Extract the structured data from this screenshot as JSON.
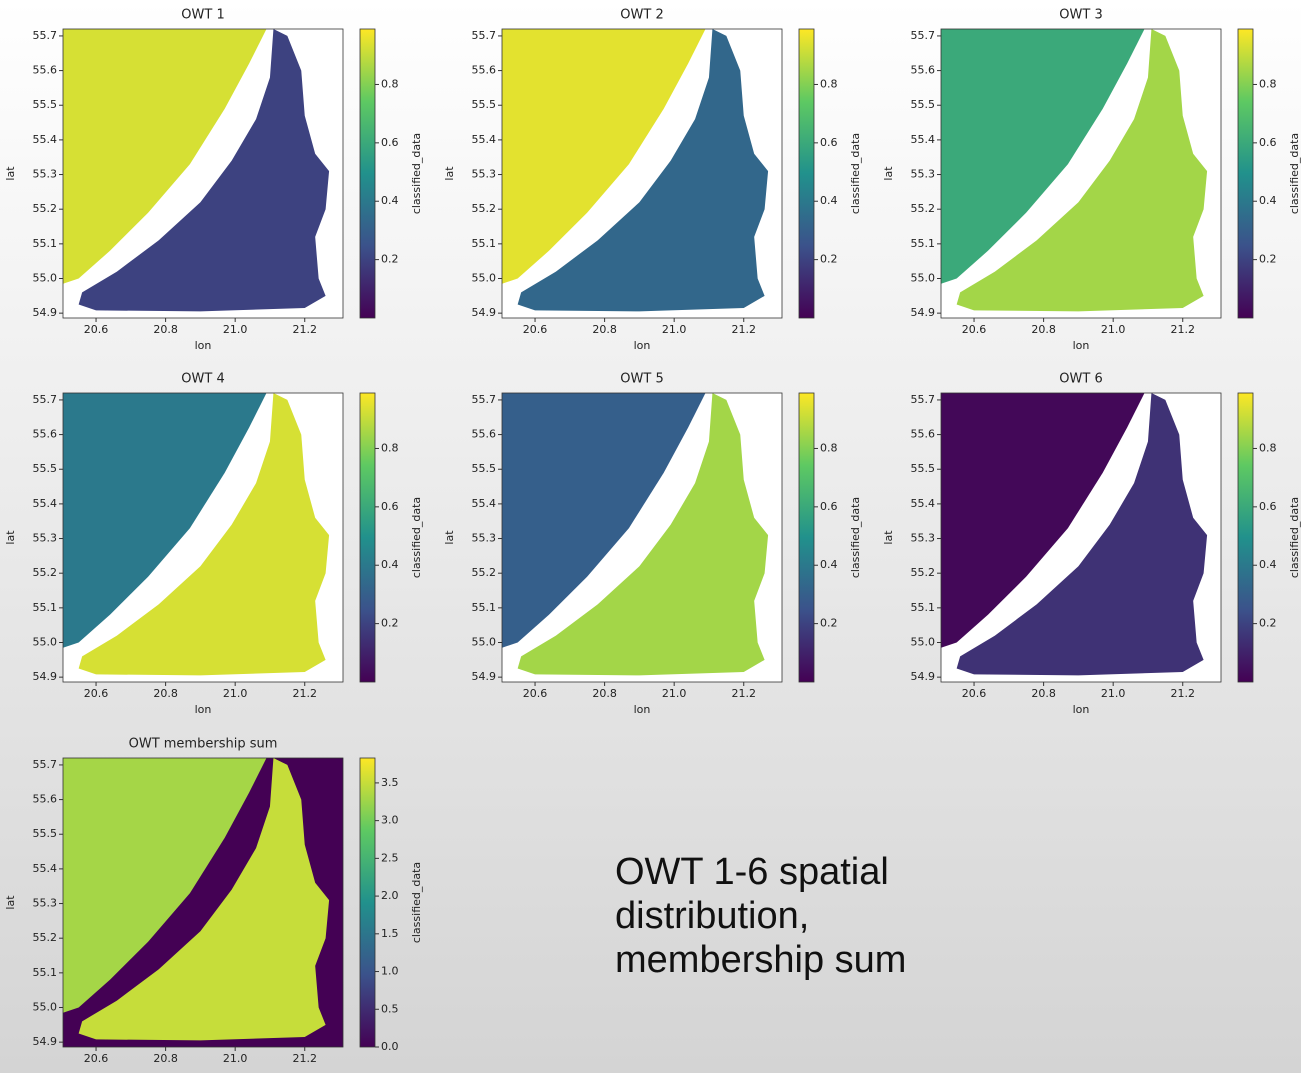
{
  "chart_data": [
    {
      "type": "heatmap",
      "title": "OWT 1",
      "xlabel": "lon",
      "ylabel": "lat",
      "xlim": [
        20.505,
        21.31
      ],
      "ylim": [
        54.886,
        55.72
      ],
      "xticks": [
        20.6,
        20.8,
        {
          "value": 21,
          "label": "21.0"
        },
        21.2
      ],
      "yticks": [
        54.9,
        {
          "value": 55,
          "label": "55.0"
        },
        55.1,
        55.2,
        55.3,
        55.4,
        55.5,
        55.6,
        55.7
      ],
      "values": [
        0.93,
        0.2
      ],
      "colorbar": {
        "label": "classified_data",
        "lim": [
          0,
          0.99
        ],
        "ticks": [
          0.2,
          0.4,
          0.6,
          0.8
        ]
      }
    },
    {
      "type": "heatmap",
      "title": "OWT 2",
      "xlabel": "lon",
      "ylabel": "lat",
      "xlim": [
        20.505,
        21.31
      ],
      "ylim": [
        54.886,
        55.72
      ],
      "xticks": [
        20.6,
        20.8,
        {
          "value": 21,
          "label": "21.0"
        },
        21.2
      ],
      "yticks": [
        54.9,
        {
          "value": 55,
          "label": "55.0"
        },
        55.1,
        55.2,
        55.3,
        55.4,
        55.5,
        55.6,
        55.7
      ],
      "values": [
        0.95,
        0.33
      ],
      "colorbar": {
        "label": "classified_data",
        "lim": [
          0,
          0.99
        ],
        "ticks": [
          0.2,
          0.4,
          0.6,
          0.8
        ]
      }
    },
    {
      "type": "heatmap",
      "title": "OWT 3",
      "xlabel": "lon",
      "ylabel": "lat",
      "xlim": [
        20.505,
        21.31
      ],
      "ylim": [
        54.886,
        55.72
      ],
      "xticks": [
        20.6,
        20.8,
        {
          "value": 21,
          "label": "21.0"
        },
        21.2
      ],
      "yticks": [
        54.9,
        {
          "value": 55,
          "label": "55.0"
        },
        55.1,
        55.2,
        55.3,
        55.4,
        55.5,
        55.6,
        55.7
      ],
      "values": [
        0.6,
        0.85
      ],
      "colorbar": {
        "label": "classified_data",
        "lim": [
          0,
          0.99
        ],
        "ticks": [
          0.2,
          0.4,
          0.6,
          0.8
        ]
      }
    },
    {
      "type": "heatmap",
      "title": "OWT 4",
      "xlabel": "lon",
      "ylabel": "lat",
      "xlim": [
        20.505,
        21.31
      ],
      "ylim": [
        54.886,
        55.72
      ],
      "xticks": [
        20.6,
        20.8,
        {
          "value": 21,
          "label": "21.0"
        },
        21.2
      ],
      "yticks": [
        54.9,
        {
          "value": 55,
          "label": "55.0"
        },
        55.1,
        55.2,
        55.3,
        55.4,
        55.5,
        55.6,
        55.7
      ],
      "values": [
        0.4,
        0.93
      ],
      "colorbar": {
        "label": "classified_data",
        "lim": [
          0,
          0.99
        ],
        "ticks": [
          0.2,
          0.4,
          0.6,
          0.8
        ]
      }
    },
    {
      "type": "heatmap",
      "title": "OWT 5",
      "xlabel": "lon",
      "ylabel": "lat",
      "xlim": [
        20.505,
        21.31
      ],
      "ylim": [
        54.886,
        55.72
      ],
      "xticks": [
        20.6,
        20.8,
        {
          "value": 21,
          "label": "21.0"
        },
        21.2
      ],
      "yticks": [
        54.9,
        {
          "value": 55,
          "label": "55.0"
        },
        55.1,
        55.2,
        55.3,
        55.4,
        55.5,
        55.6,
        55.7
      ],
      "values": [
        0.3,
        0.85
      ],
      "colorbar": {
        "label": "classified_data",
        "lim": [
          0,
          0.99
        ],
        "ticks": [
          0.2,
          0.4,
          0.6,
          0.8
        ]
      }
    },
    {
      "type": "heatmap",
      "title": "OWT 6",
      "xlabel": "lon",
      "ylabel": "lat",
      "xlim": [
        20.505,
        21.31
      ],
      "ylim": [
        54.886,
        55.72
      ],
      "xticks": [
        20.6,
        20.8,
        {
          "value": 21,
          "label": "21.0"
        },
        21.2
      ],
      "yticks": [
        54.9,
        {
          "value": 55,
          "label": "55.0"
        },
        55.1,
        55.2,
        55.3,
        55.4,
        55.5,
        55.6,
        55.7
      ],
      "values": [
        0.02,
        0.15
      ],
      "colorbar": {
        "label": "classified_data",
        "lim": [
          0,
          0.99
        ],
        "ticks": [
          0.2,
          0.4,
          0.6,
          0.8
        ]
      }
    },
    {
      "type": "heatmap",
      "title": "OWT membership sum",
      "ylabel": "lat",
      "xlim": [
        20.505,
        21.31
      ],
      "ylim": [
        54.886,
        55.72
      ],
      "xticks": [
        20.6,
        20.8,
        {
          "value": 21,
          "label": "21.0"
        },
        21.2
      ],
      "yticks": [
        54.9,
        {
          "value": 55,
          "label": "55.0"
        },
        55.1,
        55.2,
        55.3,
        55.4,
        55.5,
        55.6,
        55.7
      ],
      "values": [
        3.3,
        3.5
      ],
      "missing_color": "#440154",
      "colorbar": {
        "label": "classified_data",
        "lim": [
          0,
          3.83
        ],
        "ticks": [
          {
            "value": 0,
            "label": "0.0"
          },
          0.5,
          {
            "value": 1,
            "label": "1.0"
          },
          1.5,
          {
            "value": 2,
            "label": "2.0"
          },
          2.5,
          {
            "value": 3,
            "label": "3.0"
          },
          3.5
        ]
      }
    }
  ],
  "caption": [
    "OWT 1-6 spatial",
    "distribution,",
    "membership sum"
  ]
}
